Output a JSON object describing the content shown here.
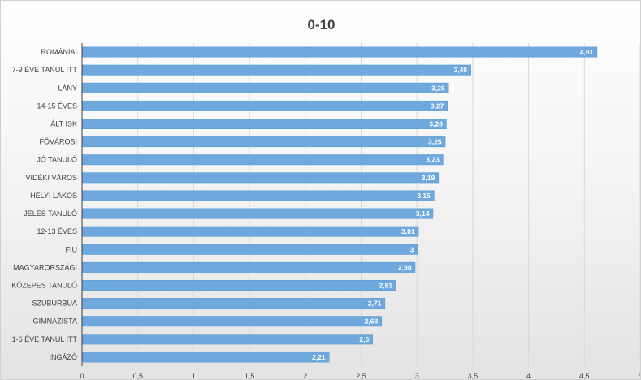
{
  "chart_data": {
    "type": "bar",
    "orientation": "horizontal",
    "title": "0-10",
    "categories": [
      "ROMÁNIAI",
      "7-9 ÉVE TANUL ITT",
      "LÁNY",
      "14-15 ÉVES",
      "ÁLT ISK",
      "FŐVÁROSI",
      "JÓ TANULÓ",
      "VIDÉKI VÁROS",
      "HELYI LAKOS",
      "JELES TANULÓ",
      "12-13 ÉVES",
      "FIU",
      "MAGYARORSZÁGI",
      "KÖZEPES TANULÓ",
      "SZUBURBUA",
      "GIMNAZISTA",
      "1-6 ÉVE TANUL ITT",
      "INGÁZÓ"
    ],
    "values": [
      4.61,
      3.48,
      3.28,
      3.27,
      3.26,
      3.25,
      3.23,
      3.19,
      3.15,
      3.14,
      3.01,
      3,
      2.98,
      2.81,
      2.71,
      2.68,
      2.6,
      2.21
    ],
    "value_labels": [
      "4,61",
      "3,48",
      "3,28",
      "3,27",
      "3,26",
      "3,25",
      "3,23",
      "3,19",
      "3,15",
      "3,14",
      "3,01",
      "3",
      "2,98",
      "2,81",
      "2,71",
      "2,68",
      "2,6",
      "2,21"
    ],
    "xlim": [
      0,
      5
    ],
    "x_ticks": [
      0,
      0.5,
      1,
      1.5,
      2,
      2.5,
      3,
      3.5,
      4,
      4.5,
      5
    ],
    "x_tick_labels": [
      "0",
      "0,5",
      "1",
      "1,5",
      "2",
      "2,5",
      "3",
      "3,5",
      "4",
      "4,5",
      "5"
    ],
    "xlabel": "",
    "ylabel": "",
    "grid": "vertical",
    "legend": "none",
    "bar_color": "#6fa8dc",
    "bar_border_color": "#5b9bd5",
    "gridline_color": "#d9d9d9",
    "axis_color": "#404040"
  }
}
